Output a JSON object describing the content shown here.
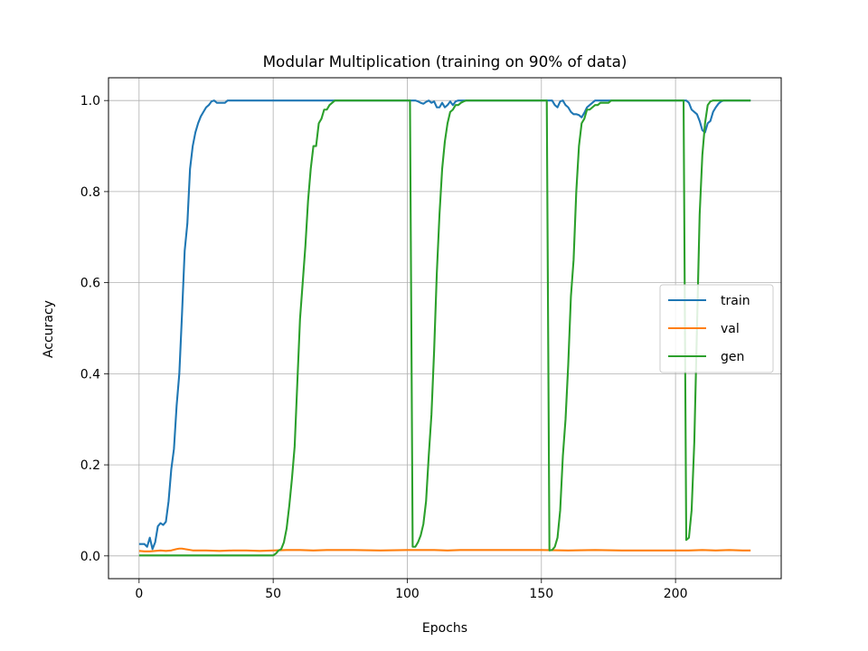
{
  "chart_data": {
    "type": "line",
    "title": "Modular Multiplication (training on 90% of data)",
    "xlabel": "Epochs",
    "ylabel": "Accuracy",
    "xlim": [
      -11.4,
      239.4
    ],
    "ylim": [
      -0.05,
      1.05
    ],
    "xticks": [
      0,
      50,
      100,
      150,
      200
    ],
    "yticks": [
      0.0,
      0.2,
      0.4,
      0.6,
      0.8,
      1.0
    ],
    "xtick_labels": [
      "0",
      "50",
      "100",
      "150",
      "200"
    ],
    "ytick_labels": [
      "0.0",
      "0.2",
      "0.4",
      "0.6",
      "0.8",
      "1.0"
    ],
    "grid": true,
    "legend_position": "center-right",
    "series": [
      {
        "name": "train",
        "color": "#1f77b4",
        "points": [
          [
            0,
            0.026
          ],
          [
            1,
            0.026
          ],
          [
            2,
            0.026
          ],
          [
            3,
            0.02
          ],
          [
            4,
            0.04
          ],
          [
            5,
            0.015
          ],
          [
            6,
            0.03
          ],
          [
            7,
            0.065
          ],
          [
            8,
            0.072
          ],
          [
            9,
            0.068
          ],
          [
            10,
            0.075
          ],
          [
            11,
            0.12
          ],
          [
            12,
            0.19
          ],
          [
            13,
            0.235
          ],
          [
            14,
            0.33
          ],
          [
            15,
            0.4
          ],
          [
            16,
            0.53
          ],
          [
            17,
            0.67
          ],
          [
            18,
            0.73
          ],
          [
            19,
            0.85
          ],
          [
            20,
            0.9
          ],
          [
            21,
            0.93
          ],
          [
            22,
            0.95
          ],
          [
            23,
            0.965
          ],
          [
            24,
            0.975
          ],
          [
            25,
            0.985
          ],
          [
            26,
            0.99
          ],
          [
            27,
            0.998
          ],
          [
            28,
            1.0
          ],
          [
            29,
            0.995
          ],
          [
            30,
            0.995
          ],
          [
            31,
            0.995
          ],
          [
            32,
            0.995
          ],
          [
            33,
            1.0
          ],
          [
            34,
            1.0
          ],
          [
            40,
            1.0
          ],
          [
            50,
            1.0
          ],
          [
            60,
            1.0
          ],
          [
            70,
            1.0
          ],
          [
            80,
            1.0
          ],
          [
            90,
            1.0
          ],
          [
            100,
            1.0
          ],
          [
            101,
            1.0
          ],
          [
            102,
            1.0
          ],
          [
            103,
            1.0
          ],
          [
            104,
            0.998
          ],
          [
            105,
            0.995
          ],
          [
            106,
            0.993
          ],
          [
            107,
            0.997
          ],
          [
            108,
            1.0
          ],
          [
            109,
            0.995
          ],
          [
            110,
            0.998
          ],
          [
            111,
            0.985
          ],
          [
            112,
            0.985
          ],
          [
            113,
            0.995
          ],
          [
            114,
            0.985
          ],
          [
            115,
            0.99
          ],
          [
            116,
            0.998
          ],
          [
            117,
            0.99
          ],
          [
            118,
            0.998
          ],
          [
            119,
            1.0
          ],
          [
            120,
            1.0
          ],
          [
            130,
            1.0
          ],
          [
            140,
            1.0
          ],
          [
            150,
            1.0
          ],
          [
            153,
            1.0
          ],
          [
            154,
            1.0
          ],
          [
            155,
            0.99
          ],
          [
            156,
            0.985
          ],
          [
            157,
            0.998
          ],
          [
            158,
            1.0
          ],
          [
            159,
            0.99
          ],
          [
            160,
            0.985
          ],
          [
            161,
            0.975
          ],
          [
            162,
            0.97
          ],
          [
            163,
            0.97
          ],
          [
            164,
            0.968
          ],
          [
            165,
            0.963
          ],
          [
            166,
            0.973
          ],
          [
            167,
            0.985
          ],
          [
            168,
            0.99
          ],
          [
            169,
            0.995
          ],
          [
            170,
            1.0
          ],
          [
            171,
            1.0
          ],
          [
            175,
            1.0
          ],
          [
            180,
            1.0
          ],
          [
            190,
            1.0
          ],
          [
            200,
            1.0
          ],
          [
            203,
            1.0
          ],
          [
            204,
            1.0
          ],
          [
            205,
            0.995
          ],
          [
            206,
            0.98
          ],
          [
            207,
            0.975
          ],
          [
            208,
            0.97
          ],
          [
            209,
            0.955
          ],
          [
            210,
            0.935
          ],
          [
            211,
            0.93
          ],
          [
            212,
            0.95
          ],
          [
            213,
            0.955
          ],
          [
            214,
            0.975
          ],
          [
            215,
            0.985
          ],
          [
            216,
            0.993
          ],
          [
            217,
            0.998
          ],
          [
            218,
            1.0
          ],
          [
            220,
            1.0
          ],
          [
            228,
            1.0
          ]
        ]
      },
      {
        "name": "val",
        "color": "#ff7f0e",
        "points": [
          [
            0,
            0.011
          ],
          [
            2,
            0.01
          ],
          [
            4,
            0.01
          ],
          [
            6,
            0.011
          ],
          [
            8,
            0.012
          ],
          [
            10,
            0.011
          ],
          [
            12,
            0.012
          ],
          [
            14,
            0.015
          ],
          [
            15,
            0.016
          ],
          [
            16,
            0.016
          ],
          [
            17,
            0.015
          ],
          [
            18,
            0.014
          ],
          [
            20,
            0.012
          ],
          [
            25,
            0.012
          ],
          [
            30,
            0.011
          ],
          [
            35,
            0.012
          ],
          [
            40,
            0.012
          ],
          [
            45,
            0.011
          ],
          [
            50,
            0.012
          ],
          [
            55,
            0.013
          ],
          [
            60,
            0.013
          ],
          [
            65,
            0.012
          ],
          [
            70,
            0.013
          ],
          [
            80,
            0.013
          ],
          [
            90,
            0.012
          ],
          [
            100,
            0.013
          ],
          [
            110,
            0.013
          ],
          [
            115,
            0.012
          ],
          [
            120,
            0.013
          ],
          [
            130,
            0.013
          ],
          [
            140,
            0.013
          ],
          [
            150,
            0.013
          ],
          [
            160,
            0.012
          ],
          [
            170,
            0.013
          ],
          [
            180,
            0.012
          ],
          [
            190,
            0.012
          ],
          [
            200,
            0.012
          ],
          [
            205,
            0.012
          ],
          [
            210,
            0.013
          ],
          [
            215,
            0.012
          ],
          [
            220,
            0.013
          ],
          [
            225,
            0.012
          ],
          [
            228,
            0.012
          ]
        ]
      },
      {
        "name": "gen",
        "color": "#2ca02c",
        "points": [
          [
            0,
            0.001
          ],
          [
            10,
            0.001
          ],
          [
            20,
            0.001
          ],
          [
            30,
            0.001
          ],
          [
            40,
            0.001
          ],
          [
            49,
            0.001
          ],
          [
            50,
            0.001
          ],
          [
            51,
            0.005
          ],
          [
            52,
            0.012
          ],
          [
            53,
            0.015
          ],
          [
            54,
            0.03
          ],
          [
            55,
            0.06
          ],
          [
            56,
            0.11
          ],
          [
            57,
            0.17
          ],
          [
            58,
            0.24
          ],
          [
            59,
            0.38
          ],
          [
            60,
            0.52
          ],
          [
            61,
            0.6
          ],
          [
            62,
            0.68
          ],
          [
            63,
            0.78
          ],
          [
            64,
            0.85
          ],
          [
            65,
            0.9
          ],
          [
            66,
            0.9
          ],
          [
            67,
            0.95
          ],
          [
            68,
            0.96
          ],
          [
            69,
            0.98
          ],
          [
            70,
            0.98
          ],
          [
            71,
            0.99
          ],
          [
            72,
            0.995
          ],
          [
            73,
            1.0
          ],
          [
            74,
            1.0
          ],
          [
            80,
            1.0
          ],
          [
            90,
            1.0
          ],
          [
            101,
            1.0
          ],
          [
            102,
            0.02
          ],
          [
            103,
            0.02
          ],
          [
            104,
            0.03
          ],
          [
            105,
            0.045
          ],
          [
            106,
            0.07
          ],
          [
            107,
            0.12
          ],
          [
            108,
            0.22
          ],
          [
            109,
            0.31
          ],
          [
            110,
            0.45
          ],
          [
            111,
            0.62
          ],
          [
            112,
            0.75
          ],
          [
            113,
            0.85
          ],
          [
            114,
            0.91
          ],
          [
            115,
            0.95
          ],
          [
            116,
            0.975
          ],
          [
            117,
            0.98
          ],
          [
            118,
            0.99
          ],
          [
            119,
            0.99
          ],
          [
            120,
            0.995
          ],
          [
            121,
            0.998
          ],
          [
            122,
            1.0
          ],
          [
            130,
            1.0
          ],
          [
            140,
            1.0
          ],
          [
            152,
            1.0
          ],
          [
            153,
            0.012
          ],
          [
            154,
            0.013
          ],
          [
            155,
            0.02
          ],
          [
            156,
            0.04
          ],
          [
            157,
            0.1
          ],
          [
            158,
            0.22
          ],
          [
            159,
            0.3
          ],
          [
            160,
            0.42
          ],
          [
            161,
            0.57
          ],
          [
            162,
            0.65
          ],
          [
            163,
            0.8
          ],
          [
            164,
            0.9
          ],
          [
            165,
            0.95
          ],
          [
            166,
            0.96
          ],
          [
            167,
            0.98
          ],
          [
            168,
            0.98
          ],
          [
            169,
            0.985
          ],
          [
            170,
            0.99
          ],
          [
            171,
            0.99
          ],
          [
            172,
            0.995
          ],
          [
            173,
            0.995
          ],
          [
            174,
            0.995
          ],
          [
            175,
            0.995
          ],
          [
            176,
            1.0
          ],
          [
            180,
            1.0
          ],
          [
            190,
            1.0
          ],
          [
            203,
            1.0
          ],
          [
            204,
            0.035
          ],
          [
            205,
            0.04
          ],
          [
            206,
            0.1
          ],
          [
            207,
            0.25
          ],
          [
            208,
            0.5
          ],
          [
            209,
            0.75
          ],
          [
            210,
            0.88
          ],
          [
            211,
            0.95
          ],
          [
            212,
            0.99
          ],
          [
            213,
            0.998
          ],
          [
            214,
            1.0
          ],
          [
            220,
            1.0
          ],
          [
            228,
            1.0
          ]
        ]
      }
    ]
  }
}
